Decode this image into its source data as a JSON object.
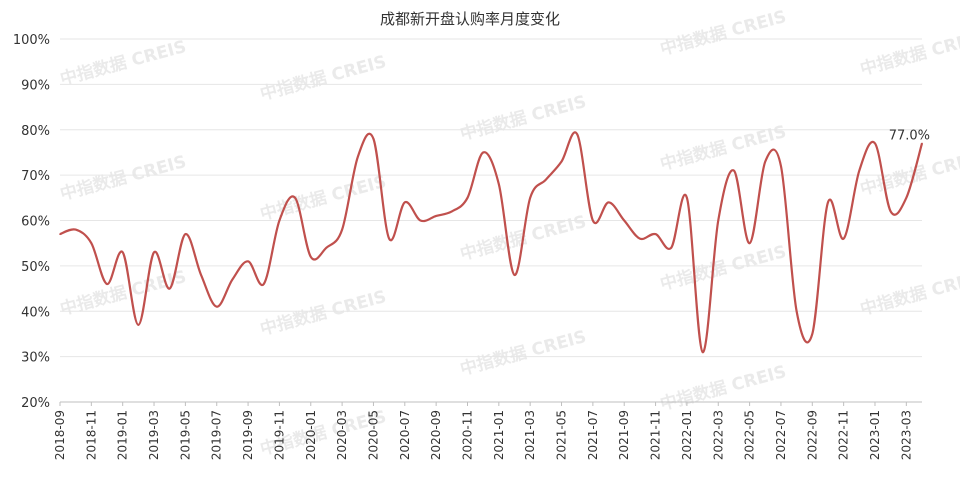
{
  "chart_data": {
    "type": "line",
    "title": "成都新开盘认购率月度变化",
    "ylim": [
      20,
      100
    ],
    "y_ticks": [
      "20%",
      "30%",
      "40%",
      "50%",
      "60%",
      "70%",
      "80%",
      "90%",
      "100%"
    ],
    "y_tick_values": [
      20,
      30,
      40,
      50,
      60,
      70,
      80,
      90,
      100
    ],
    "x": [
      "2018-09",
      "2018-10",
      "2018-11",
      "2018-12",
      "2019-01",
      "2019-02",
      "2019-03",
      "2019-04",
      "2019-05",
      "2019-06",
      "2019-07",
      "2019-08",
      "2019-09",
      "2019-10",
      "2019-11",
      "2019-12",
      "2020-01",
      "2020-02",
      "2020-03",
      "2020-04",
      "2020-05",
      "2020-06",
      "2020-07",
      "2020-08",
      "2020-09",
      "2020-10",
      "2020-11",
      "2020-12",
      "2021-01",
      "2021-02",
      "2021-03",
      "2021-04",
      "2021-05",
      "2021-06",
      "2021-07",
      "2021-08",
      "2021-09",
      "2021-10",
      "2021-11",
      "2021-12",
      "2022-01",
      "2022-02",
      "2022-03",
      "2022-04",
      "2022-05",
      "2022-06",
      "2022-07",
      "2022-08",
      "2022-09",
      "2022-10",
      "2022-11",
      "2022-12",
      "2023-01",
      "2023-02",
      "2023-03",
      "2023-04"
    ],
    "x_tick_labels": [
      "2018-09",
      "2018-11",
      "2019-01",
      "2019-03",
      "2019-05",
      "2019-07",
      "2019-09",
      "2019-11",
      "2020-01",
      "2020-03",
      "2020-05",
      "2020-07",
      "2020-09",
      "2020-11",
      "2021-01",
      "2021-03",
      "2021-05",
      "2021-07",
      "2021-09",
      "2021-11",
      "2022-01",
      "2022-03",
      "2022-05",
      "2022-07",
      "2022-09",
      "2022-11",
      "2023-01",
      "2023-03"
    ],
    "series": [
      {
        "color": "#c0504d",
        "values": [
          57,
          58,
          55,
          46,
          53,
          37,
          53,
          45,
          57,
          48,
          41,
          47,
          51,
          46,
          60,
          65,
          52,
          54,
          58,
          74,
          78,
          56,
          64,
          60,
          61,
          62,
          65,
          75,
          68,
          48,
          65,
          69,
          73,
          79,
          60,
          64,
          60,
          56,
          57,
          54,
          65,
          31,
          60,
          71,
          55,
          73,
          72,
          40,
          35,
          64,
          56,
          71,
          77,
          62,
          65,
          77
        ]
      }
    ],
    "annotations": [
      {
        "text": "77.0%",
        "at": "2023-04"
      }
    ],
    "grid": "horizontal",
    "legend": "none"
  },
  "watermark": "中指数据 CREIS"
}
